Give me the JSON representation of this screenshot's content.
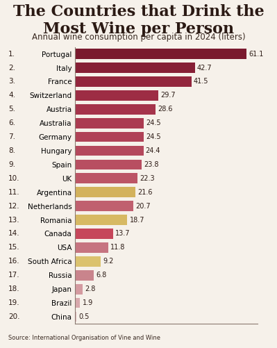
{
  "chart_data": {
    "type": "bar",
    "orientation": "horizontal",
    "title": "The Countries that Drink the Most Wine per Person",
    "subtitle": "Annual wine consumption per capita in 2024 (liters)",
    "source": "Source: International Organisation of Vine and Wine",
    "ranks": [
      "1.",
      "2.",
      "3.",
      "4.",
      "5.",
      "6.",
      "7.",
      "8.",
      "9.",
      "10.",
      "11.",
      "12.",
      "13.",
      "14.",
      "15.",
      "16.",
      "17.",
      "18.",
      "19.",
      "20."
    ],
    "categories": [
      "Portugal",
      "Italy",
      "France",
      "Switzerland",
      "Austria",
      "Australia",
      "Germany",
      "Hungary",
      "Spain",
      "UK",
      "Argentina",
      "Netherlands",
      "Romania",
      "Canada",
      "USA",
      "South Africa",
      "Russia",
      "Japan",
      "Brazil",
      "China"
    ],
    "values": [
      61.1,
      42.7,
      41.5,
      29.7,
      28.6,
      24.5,
      24.5,
      24.4,
      23.8,
      22.3,
      21.6,
      20.7,
      18.7,
      13.7,
      11.8,
      9.2,
      6.8,
      2.8,
      1.9,
      0.5
    ],
    "colors": [
      "#7a1a2e",
      "#861f35",
      "#93263d",
      "#9d2d44",
      "#a5344b",
      "#ab3b51",
      "#b04257",
      "#b4485c",
      "#b84e61",
      "#bc5566",
      "#d3b25c",
      "#c0606f",
      "#d7b963",
      "#c6465a",
      "#c67480",
      "#dbc26e",
      "#c9848c",
      "#d49aa0",
      "#d8a8ac",
      "#ddb5b8"
    ],
    "xlim": [
      0,
      65
    ],
    "xticks": [],
    "tick_labels": "y",
    "data_labels": true,
    "grid": false
  }
}
